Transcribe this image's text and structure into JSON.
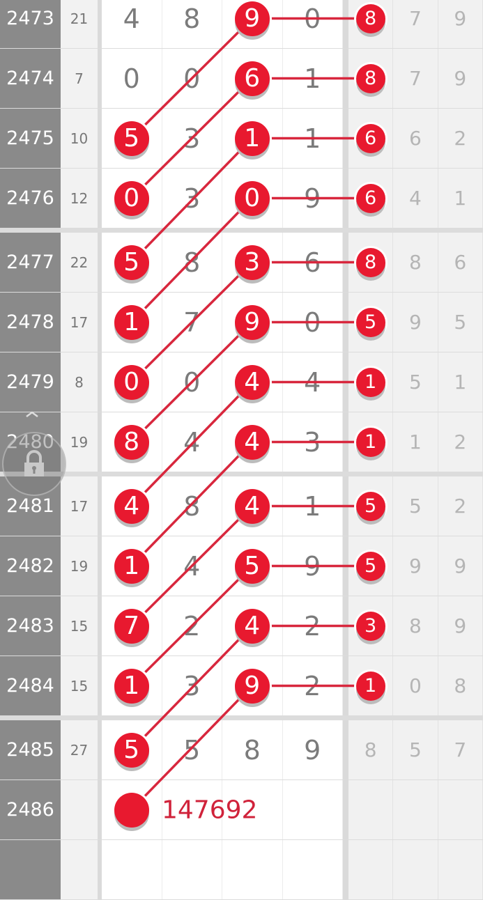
{
  "colors": {
    "ball": "#e8192f",
    "line": "#d8273d",
    "issue_bg": "#8a8a8a"
  },
  "rows": [
    {
      "issue": "2473",
      "sum": "21",
      "digits": [
        "4",
        "8",
        "9",
        "0"
      ],
      "extra": [
        "8",
        "7",
        "9"
      ],
      "hit": [
        false,
        false,
        true,
        false
      ],
      "extra_hit": true
    },
    {
      "issue": "2474",
      "sum": "7",
      "digits": [
        "0",
        "0",
        "6",
        "1"
      ],
      "extra": [
        "8",
        "7",
        "9"
      ],
      "hit": [
        false,
        false,
        true,
        false
      ],
      "extra_hit": true
    },
    {
      "issue": "2475",
      "sum": "10",
      "digits": [
        "5",
        "3",
        "1",
        "1"
      ],
      "extra": [
        "6",
        "6",
        "2"
      ],
      "hit": [
        true,
        false,
        true,
        false
      ],
      "extra_hit": true
    },
    {
      "issue": "2476",
      "sum": "12",
      "digits": [
        "0",
        "3",
        "0",
        "9"
      ],
      "extra": [
        "6",
        "4",
        "1"
      ],
      "hit": [
        true,
        false,
        true,
        false
      ],
      "extra_hit": true
    },
    {
      "issue": "2477",
      "sum": "22",
      "digits": [
        "5",
        "8",
        "3",
        "6"
      ],
      "extra": [
        "8",
        "8",
        "6"
      ],
      "hit": [
        true,
        false,
        true,
        false
      ],
      "extra_hit": true
    },
    {
      "issue": "2478",
      "sum": "17",
      "digits": [
        "1",
        "7",
        "9",
        "0"
      ],
      "extra": [
        "5",
        "9",
        "5"
      ],
      "hit": [
        true,
        false,
        true,
        false
      ],
      "extra_hit": true
    },
    {
      "issue": "2479",
      "sum": "8",
      "digits": [
        "0",
        "0",
        "4",
        "4"
      ],
      "extra": [
        "1",
        "5",
        "1"
      ],
      "hit": [
        true,
        false,
        true,
        false
      ],
      "extra_hit": true
    },
    {
      "issue": "2480",
      "sum": "19",
      "digits": [
        "8",
        "4",
        "4",
        "3"
      ],
      "extra": [
        "1",
        "1",
        "2"
      ],
      "hit": [
        true,
        false,
        true,
        false
      ],
      "extra_hit": true
    },
    {
      "issue": "2481",
      "sum": "17",
      "digits": [
        "4",
        "8",
        "4",
        "1"
      ],
      "extra": [
        "5",
        "5",
        "2"
      ],
      "hit": [
        true,
        false,
        true,
        false
      ],
      "extra_hit": true
    },
    {
      "issue": "2482",
      "sum": "19",
      "digits": [
        "1",
        "4",
        "5",
        "9"
      ],
      "extra": [
        "5",
        "9",
        "9"
      ],
      "hit": [
        true,
        false,
        true,
        false
      ],
      "extra_hit": true
    },
    {
      "issue": "2483",
      "sum": "15",
      "digits": [
        "7",
        "2",
        "4",
        "2"
      ],
      "extra": [
        "3",
        "8",
        "9"
      ],
      "hit": [
        true,
        false,
        true,
        false
      ],
      "extra_hit": true
    },
    {
      "issue": "2484",
      "sum": "15",
      "digits": [
        "1",
        "3",
        "9",
        "2"
      ],
      "extra": [
        "1",
        "0",
        "8"
      ],
      "hit": [
        true,
        false,
        true,
        false
      ],
      "extra_hit": true
    },
    {
      "issue": "2485",
      "sum": "27",
      "digits": [
        "5",
        "5",
        "8",
        "9"
      ],
      "extra": [
        "8",
        "5",
        "7"
      ],
      "hit": [
        true,
        false,
        false,
        false
      ],
      "extra_hit": false
    }
  ],
  "next": {
    "issue": "2486",
    "pick": "147692"
  },
  "lock_icon": "lock-icon"
}
